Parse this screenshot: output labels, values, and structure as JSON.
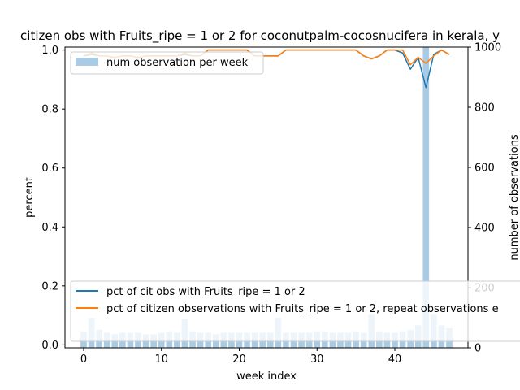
{
  "chart_data": {
    "type": "line",
    "title": "citizen obs with Fruits_ripe = 1 or 2 for coconutpalm-cocosnucifera in kerala, y",
    "xlabel": "week index",
    "ylabel": "percent",
    "y2label": "number of observations",
    "xlim": [
      -2.4,
      49.4
    ],
    "ylim": [
      -0.01,
      1.01
    ],
    "y2lim": [
      0,
      1000
    ],
    "xticks": [
      0,
      10,
      20,
      30,
      40
    ],
    "yticks": [
      0.0,
      0.2,
      0.4,
      0.6,
      0.8,
      1.0
    ],
    "y2ticks": [
      0,
      200,
      400,
      600,
      800,
      1000
    ],
    "bars": {
      "name": "num observation per week",
      "color": "#a9cbe3",
      "x": [
        0,
        1,
        2,
        3,
        4,
        5,
        6,
        7,
        8,
        9,
        10,
        11,
        12,
        13,
        14,
        15,
        16,
        17,
        18,
        19,
        20,
        21,
        22,
        23,
        24,
        25,
        26,
        27,
        28,
        29,
        30,
        31,
        32,
        33,
        34,
        35,
        36,
        37,
        38,
        39,
        40,
        41,
        42,
        43,
        44,
        45,
        46,
        47
      ],
      "values": [
        55,
        100,
        60,
        50,
        45,
        50,
        50,
        50,
        45,
        45,
        50,
        55,
        50,
        95,
        55,
        50,
        50,
        45,
        50,
        50,
        50,
        50,
        50,
        50,
        50,
        100,
        50,
        50,
        50,
        50,
        55,
        55,
        50,
        50,
        50,
        55,
        50,
        110,
        55,
        50,
        50,
        55,
        60,
        75,
        1000,
        110,
        75,
        65
      ]
    },
    "series": [
      {
        "name": "pct of cit obs with Fruits_ripe = 1 or 2",
        "color": "#1f77b4",
        "x": [
          0,
          1,
          2,
          3,
          4,
          5,
          6,
          7,
          8,
          9,
          10,
          11,
          12,
          13,
          14,
          15,
          16,
          17,
          18,
          19,
          20,
          21,
          22,
          23,
          24,
          25,
          26,
          27,
          28,
          29,
          30,
          31,
          32,
          33,
          34,
          35,
          36,
          37,
          38,
          39,
          40,
          41,
          42,
          43,
          44,
          45,
          46,
          47
        ],
        "values": [
          0.98,
          0.985,
          0.98,
          0.98,
          0.975,
          0.98,
          0.98,
          0.975,
          0.98,
          0.98,
          0.98,
          0.98,
          0.98,
          0.985,
          0.98,
          0.98,
          1.0,
          1.0,
          1.0,
          1.0,
          1.0,
          1.0,
          0.98,
          0.98,
          0.98,
          0.98,
          1.0,
          1.0,
          1.0,
          1.0,
          1.0,
          1.0,
          1.0,
          1.0,
          1.0,
          1.0,
          0.98,
          0.97,
          0.98,
          1.0,
          1.0,
          0.99,
          0.935,
          0.975,
          0.873,
          0.985,
          1.0,
          0.985
        ]
      },
      {
        "name": "pct of citizen observations with Fruits_ripe = 1 or 2, repeat observations e",
        "color": "#ff7f0e",
        "x": [
          0,
          1,
          2,
          3,
          4,
          5,
          6,
          7,
          8,
          9,
          10,
          11,
          12,
          13,
          14,
          15,
          16,
          17,
          18,
          19,
          20,
          21,
          22,
          23,
          24,
          25,
          26,
          27,
          28,
          29,
          30,
          31,
          32,
          33,
          34,
          35,
          36,
          37,
          38,
          39,
          40,
          41,
          42,
          43,
          44,
          45,
          46,
          47
        ],
        "values": [
          0.98,
          0.99,
          0.98,
          0.98,
          0.975,
          0.98,
          0.98,
          0.975,
          0.98,
          0.98,
          0.98,
          0.98,
          0.98,
          0.99,
          0.98,
          0.98,
          1.0,
          1.0,
          1.0,
          1.0,
          1.0,
          1.0,
          0.98,
          0.98,
          0.98,
          0.98,
          1.0,
          1.0,
          1.0,
          1.0,
          1.0,
          1.0,
          1.0,
          1.0,
          1.0,
          1.0,
          0.98,
          0.97,
          0.98,
          1.0,
          1.0,
          1.0,
          0.95,
          0.975,
          0.955,
          0.98,
          1.0,
          0.985
        ]
      }
    ],
    "legend_bars_placement": "upper-left",
    "legend_lines_placement": "lower-left",
    "grid": false
  }
}
